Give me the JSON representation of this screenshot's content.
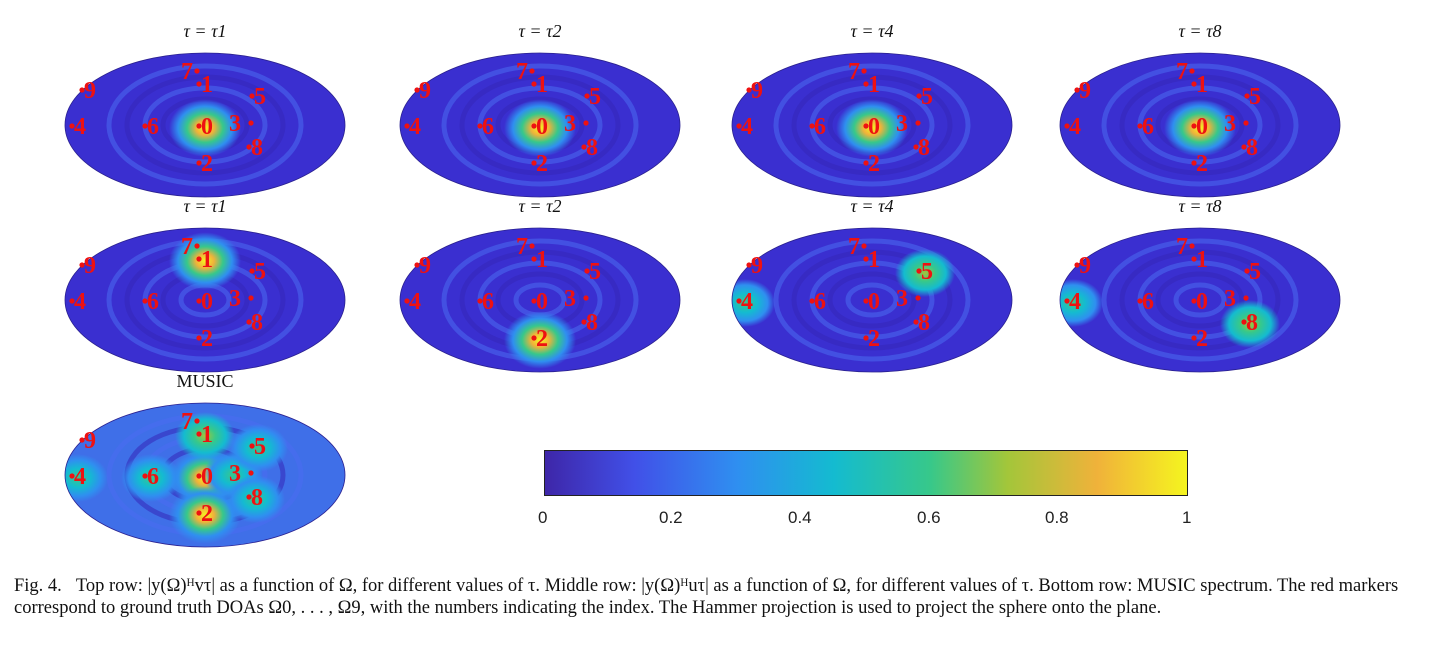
{
  "colors": {
    "background": "#3a2fd0",
    "colormap": [
      "#3e26a8",
      "#4150e8",
      "#2f8ff0",
      "#14bbd0",
      "#37c88a",
      "#a3c63a",
      "#f0b23a",
      "#f5f51f"
    ],
    "marker": "#ee1111"
  },
  "panels": [
    {
      "title": "τ = τ1",
      "peaks": [
        {
          "marker": "0",
          "strength": 1.0
        }
      ]
    },
    {
      "title": "τ = τ2",
      "peaks": [
        {
          "marker": "0",
          "strength": 1.0
        }
      ]
    },
    {
      "title": "τ = τ4",
      "peaks": [
        {
          "marker": "0",
          "strength": 1.0
        }
      ]
    },
    {
      "title": "τ = τ8",
      "peaks": [
        {
          "marker": "0",
          "strength": 1.0
        }
      ]
    },
    {
      "title": "τ = τ1",
      "peaks": [
        {
          "marker": "1",
          "strength": 1.0
        }
      ]
    },
    {
      "title": "τ = τ2",
      "peaks": [
        {
          "marker": "2",
          "strength": 1.0
        }
      ]
    },
    {
      "title": "τ = τ4",
      "peaks": [
        {
          "marker": "5",
          "strength": 0.55
        },
        {
          "marker": "4",
          "strength": 0.5
        }
      ]
    },
    {
      "title": "τ = τ8",
      "peaks": [
        {
          "marker": "8",
          "strength": 0.6
        },
        {
          "marker": "4",
          "strength": 0.4
        }
      ]
    },
    {
      "title": "MUSIC",
      "peaks": [
        {
          "marker": "0",
          "strength": 1.0
        },
        {
          "marker": "2",
          "strength": 0.9
        },
        {
          "marker": "1",
          "strength": 0.6
        },
        {
          "marker": "6",
          "strength": 0.5
        },
        {
          "marker": "3",
          "strength": 0.45
        },
        {
          "marker": "5",
          "strength": 0.45
        },
        {
          "marker": "8",
          "strength": 0.45
        },
        {
          "marker": "4",
          "strength": 0.35
        }
      ]
    }
  ],
  "markers": [
    "0",
    "1",
    "2",
    "3",
    "4",
    "5",
    "6",
    "7",
    "8",
    "9"
  ],
  "colorbar": {
    "ticks": [
      "0",
      "0.2",
      "0.4",
      "0.6",
      "0.8",
      "1"
    ],
    "range": [
      0,
      1
    ]
  },
  "caption": {
    "label": "Fig. 4.",
    "text": "Top row: |y(Ω)ᴴvτ| as a function of Ω, for different values of τ. Middle row: |y(Ω)ᴴuτ| as a function of Ω, for different values of τ. Bottom row: MUSIC spectrum. The red markers correspond to ground truth DOAs Ω0, . . . , Ω9, with the numbers indicating the index. The Hammer projection is used to project the sphere onto the plane."
  }
}
